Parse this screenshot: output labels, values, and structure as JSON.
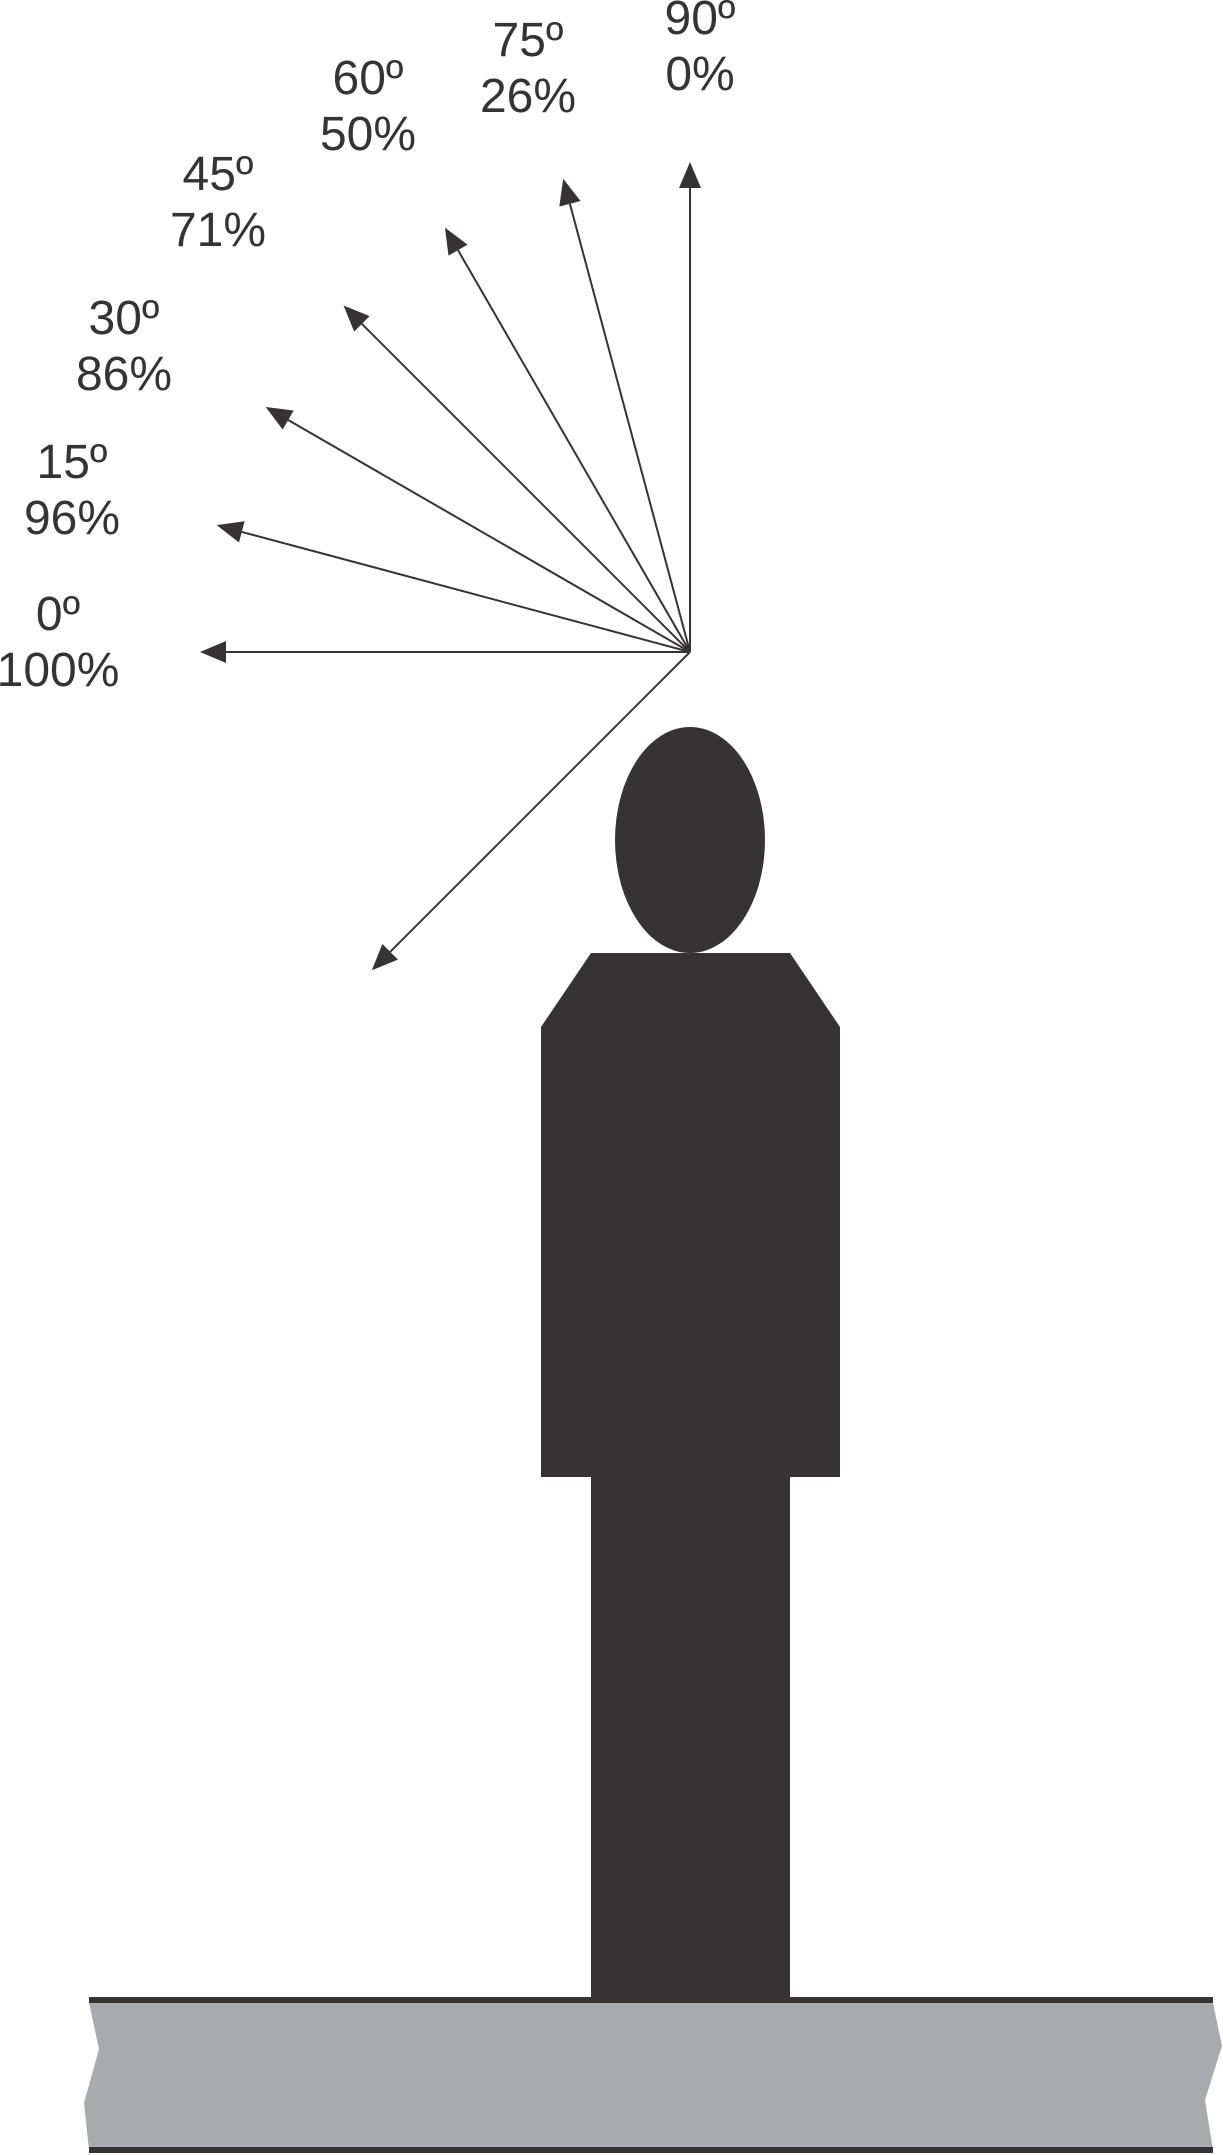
{
  "diagram": {
    "colors": {
      "ink": "#353334",
      "ground": "#a9aaad",
      "background": "#ffffff"
    },
    "rays": [
      {
        "angle_deg": 0,
        "angle_label": "0º",
        "percent_label": "100%"
      },
      {
        "angle_deg": 15,
        "angle_label": "15º",
        "percent_label": "96%"
      },
      {
        "angle_deg": 30,
        "angle_label": "30º",
        "percent_label": "86%"
      },
      {
        "angle_deg": 45,
        "angle_label": "45º",
        "percent_label": "71%"
      },
      {
        "angle_deg": 60,
        "angle_label": "60º",
        "percent_label": "50%"
      },
      {
        "angle_deg": 75,
        "angle_label": "75º",
        "percent_label": "26%"
      },
      {
        "angle_deg": 90,
        "angle_label": "90º",
        "percent_label": "0%"
      }
    ],
    "downward_ray": {
      "angle_deg": -45
    }
  }
}
